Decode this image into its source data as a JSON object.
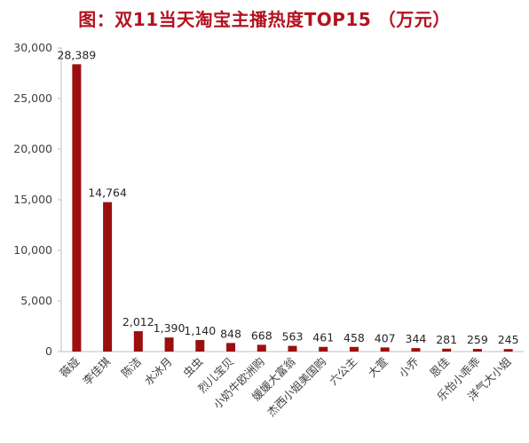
{
  "chart_data": {
    "type": "bar",
    "title": "图：双11当天淘宝主播热度TOP15 （万元）",
    "xlabel": "",
    "ylabel": "",
    "ylim": [
      0,
      30000
    ],
    "yticks": [
      "0",
      "5,000",
      "10,000",
      "15,000",
      "20,000",
      "25,000",
      "30,000"
    ],
    "ytick_values": [
      0,
      5000,
      10000,
      15000,
      20000,
      25000,
      30000
    ],
    "grid": false,
    "legend": "none",
    "bar_color": "#9c0f0f",
    "categories": [
      "薇娅",
      "李佳琪",
      "陈洁",
      "水冰月",
      "虫虫",
      "烈儿宝贝",
      "小奶牛欧洲购",
      "媛媛大富翁",
      "杰西小姐美国购",
      "六公主",
      "大萱",
      "小乔",
      "恩佳",
      "乐怡小乖乖",
      "洋气大小姐"
    ],
    "values": [
      28389,
      14764,
      2012,
      1390,
      1140,
      848,
      668,
      563,
      461,
      458,
      407,
      344,
      281,
      259,
      245
    ],
    "value_labels": [
      "28,389",
      "14,764",
      "2,012",
      "1,390",
      "1,140",
      "848",
      "668",
      "563",
      "461",
      "458",
      "407",
      "344",
      "281",
      "259",
      "245"
    ]
  }
}
